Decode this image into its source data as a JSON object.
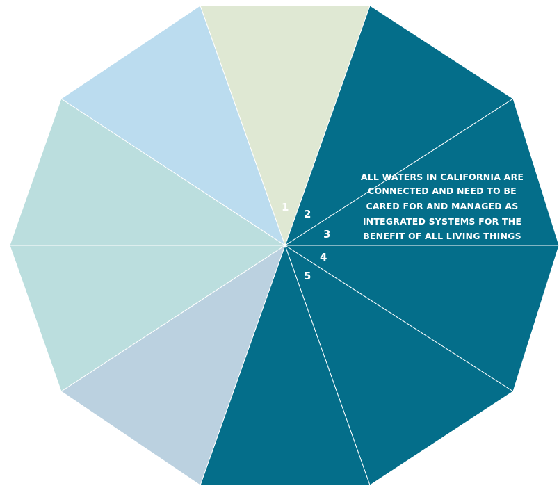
{
  "diagram": {
    "message": [
      "ALL WATERS IN CALIFORNIA ARE",
      "CONNECTED AND NEED TO BE",
      "CARED FOR AND MANAGED AS",
      "INTEGRATED SYSTEMS FOR THE",
      "BENEFIT OF ALL LIVING THINGS"
    ],
    "numbers": [
      "1",
      "2",
      "3",
      "4",
      "5"
    ],
    "segment_colors": [
      "#046e8a",
      "#046e8a",
      "#046e8a",
      "#046e8a",
      "#046e8a",
      "#bbd1e0",
      "#bbdede",
      "#bbdede",
      "#bbdcef",
      "#dfe8d3"
    ]
  }
}
